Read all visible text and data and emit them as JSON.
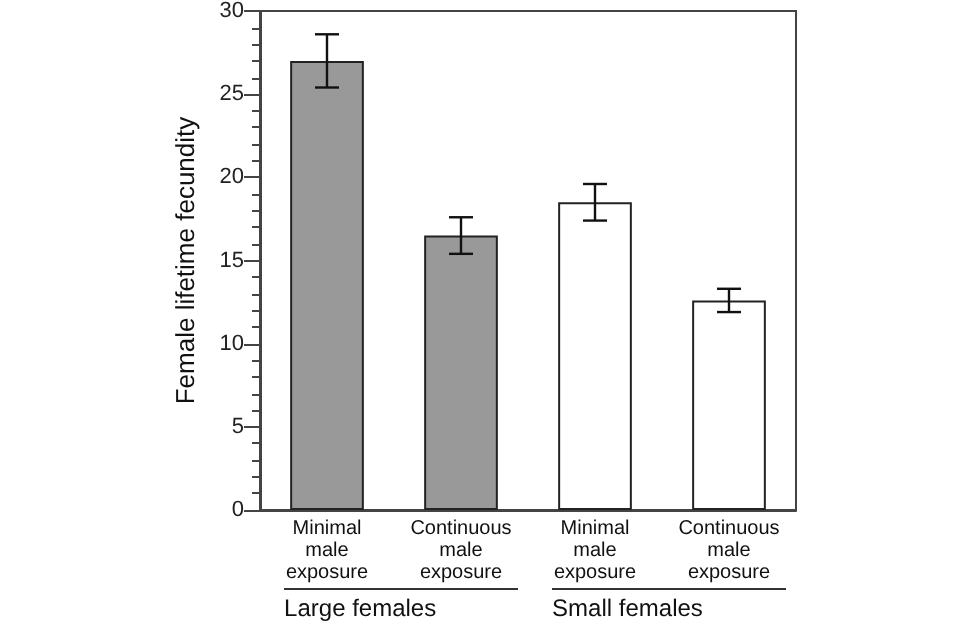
{
  "chart_data": {
    "type": "bar",
    "ylabel": "Female lifetime fecundity",
    "categories": [
      "Minimal male exposure",
      "Continuous male exposure",
      "Minimal male exposure",
      "Continuous male exposure"
    ],
    "values": [
      27.0,
      16.5,
      18.5,
      12.6
    ],
    "colors": [
      "#999999",
      "#999999",
      "#ffffff",
      "#ffffff"
    ],
    "errors": [
      [
        25.4,
        28.6
      ],
      [
        15.4,
        17.6
      ],
      [
        17.4,
        19.6
      ],
      [
        11.9,
        13.3
      ]
    ],
    "ylim": [
      0,
      30
    ],
    "yticks": [
      0,
      5,
      10,
      15,
      20,
      25,
      30
    ],
    "grid": false,
    "annotations": [
      "Large females",
      "Small females"
    ]
  }
}
